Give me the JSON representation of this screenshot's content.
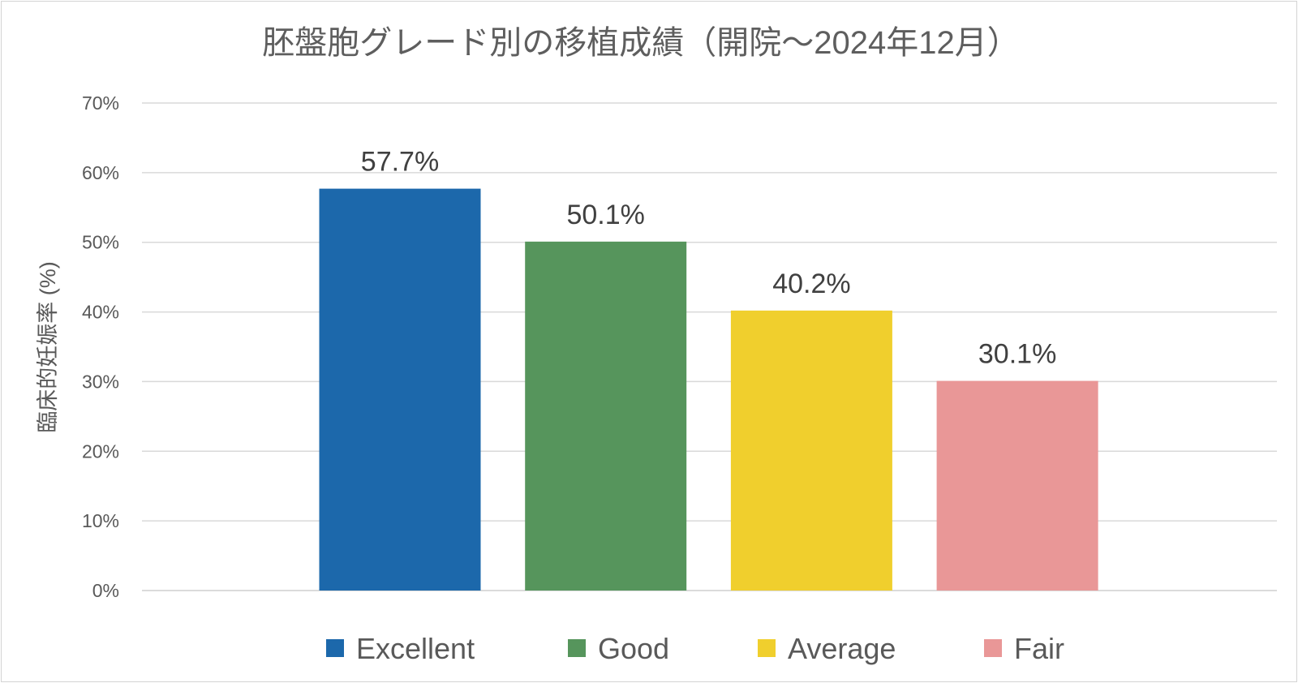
{
  "chart_data": {
    "type": "bar",
    "title": "胚盤胞グレード別の移植成績（開院～2024年12月）",
    "xlabel": "",
    "ylabel": "臨床的妊娠率 (%)",
    "ylim": [
      0,
      70
    ],
    "y_ticks": [
      "0%",
      "10%",
      "20%",
      "30%",
      "40%",
      "50%",
      "60%",
      "70%"
    ],
    "grid": true,
    "legend_position": "bottom",
    "series": [
      {
        "name": "Excellent",
        "value": 57.7,
        "label": "57.7%",
        "color": "#1c68ab"
      },
      {
        "name": "Good",
        "value": 50.1,
        "label": "50.1%",
        "color": "#56955c"
      },
      {
        "name": "Average",
        "value": 40.2,
        "label": "40.2%",
        "color": "#f0cf2d"
      },
      {
        "name": "Fair",
        "value": 30.1,
        "label": "30.1%",
        "color": "#e99797"
      }
    ]
  }
}
